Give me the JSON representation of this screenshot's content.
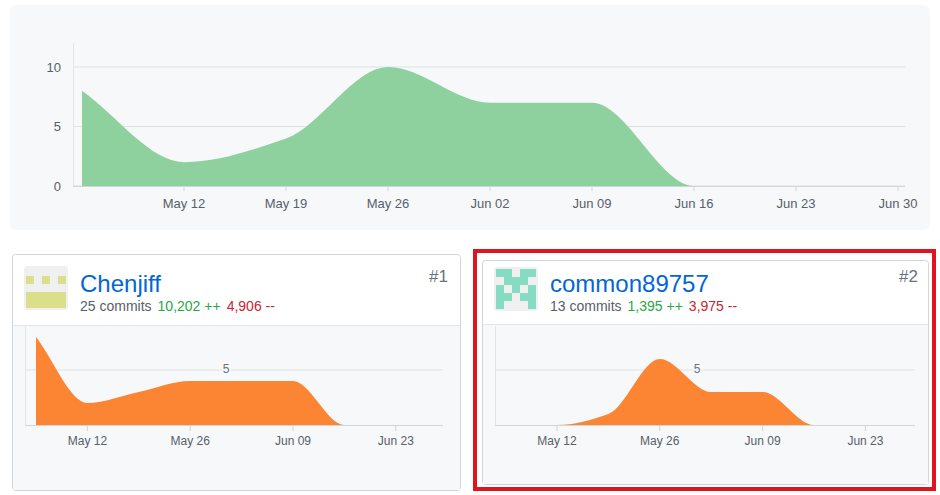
{
  "chart_data": [
    {
      "type": "area",
      "categories": [
        null,
        "May 12",
        "May 19",
        "May 26",
        "Jun 02",
        "Jun 09",
        "Jun 16",
        "Jun 23",
        "Jun 30"
      ],
      "values": [
        8,
        2,
        4,
        10,
        7,
        7,
        0,
        0,
        0
      ],
      "color": "#8fd19e",
      "ylim": [
        0,
        12
      ],
      "yticks": [
        0,
        5,
        10
      ],
      "grid": true
    },
    {
      "type": "area",
      "categories": [
        null,
        "May 12",
        null,
        "May 26",
        null,
        "Jun 09",
        null,
        "Jun 23",
        null
      ],
      "values": [
        8,
        2,
        3,
        4,
        4,
        4,
        0,
        0,
        0
      ],
      "color": "#fb8532",
      "ylim": [
        0,
        9
      ],
      "yticks": [
        5
      ],
      "grid": true
    },
    {
      "type": "area",
      "categories": [
        null,
        "May 12",
        null,
        "May 26",
        null,
        "Jun 09",
        null,
        "Jun 23",
        null
      ],
      "values": [
        0,
        0,
        1,
        6,
        3,
        3,
        0,
        0,
        0
      ],
      "color": "#fb8532",
      "ylim": [
        0,
        9
      ],
      "yticks": [
        5
      ],
      "grid": true
    }
  ],
  "contributors": [
    {
      "name": "Chenjiff",
      "rank": "#1",
      "commits": "25 commits",
      "additions": "10,202 ++",
      "deletions": "4,906 --"
    },
    {
      "name": "common89757",
      "rank": "#2",
      "commits": "13 commits",
      "additions": "1,395 ++",
      "deletions": "3,975 --"
    }
  ]
}
